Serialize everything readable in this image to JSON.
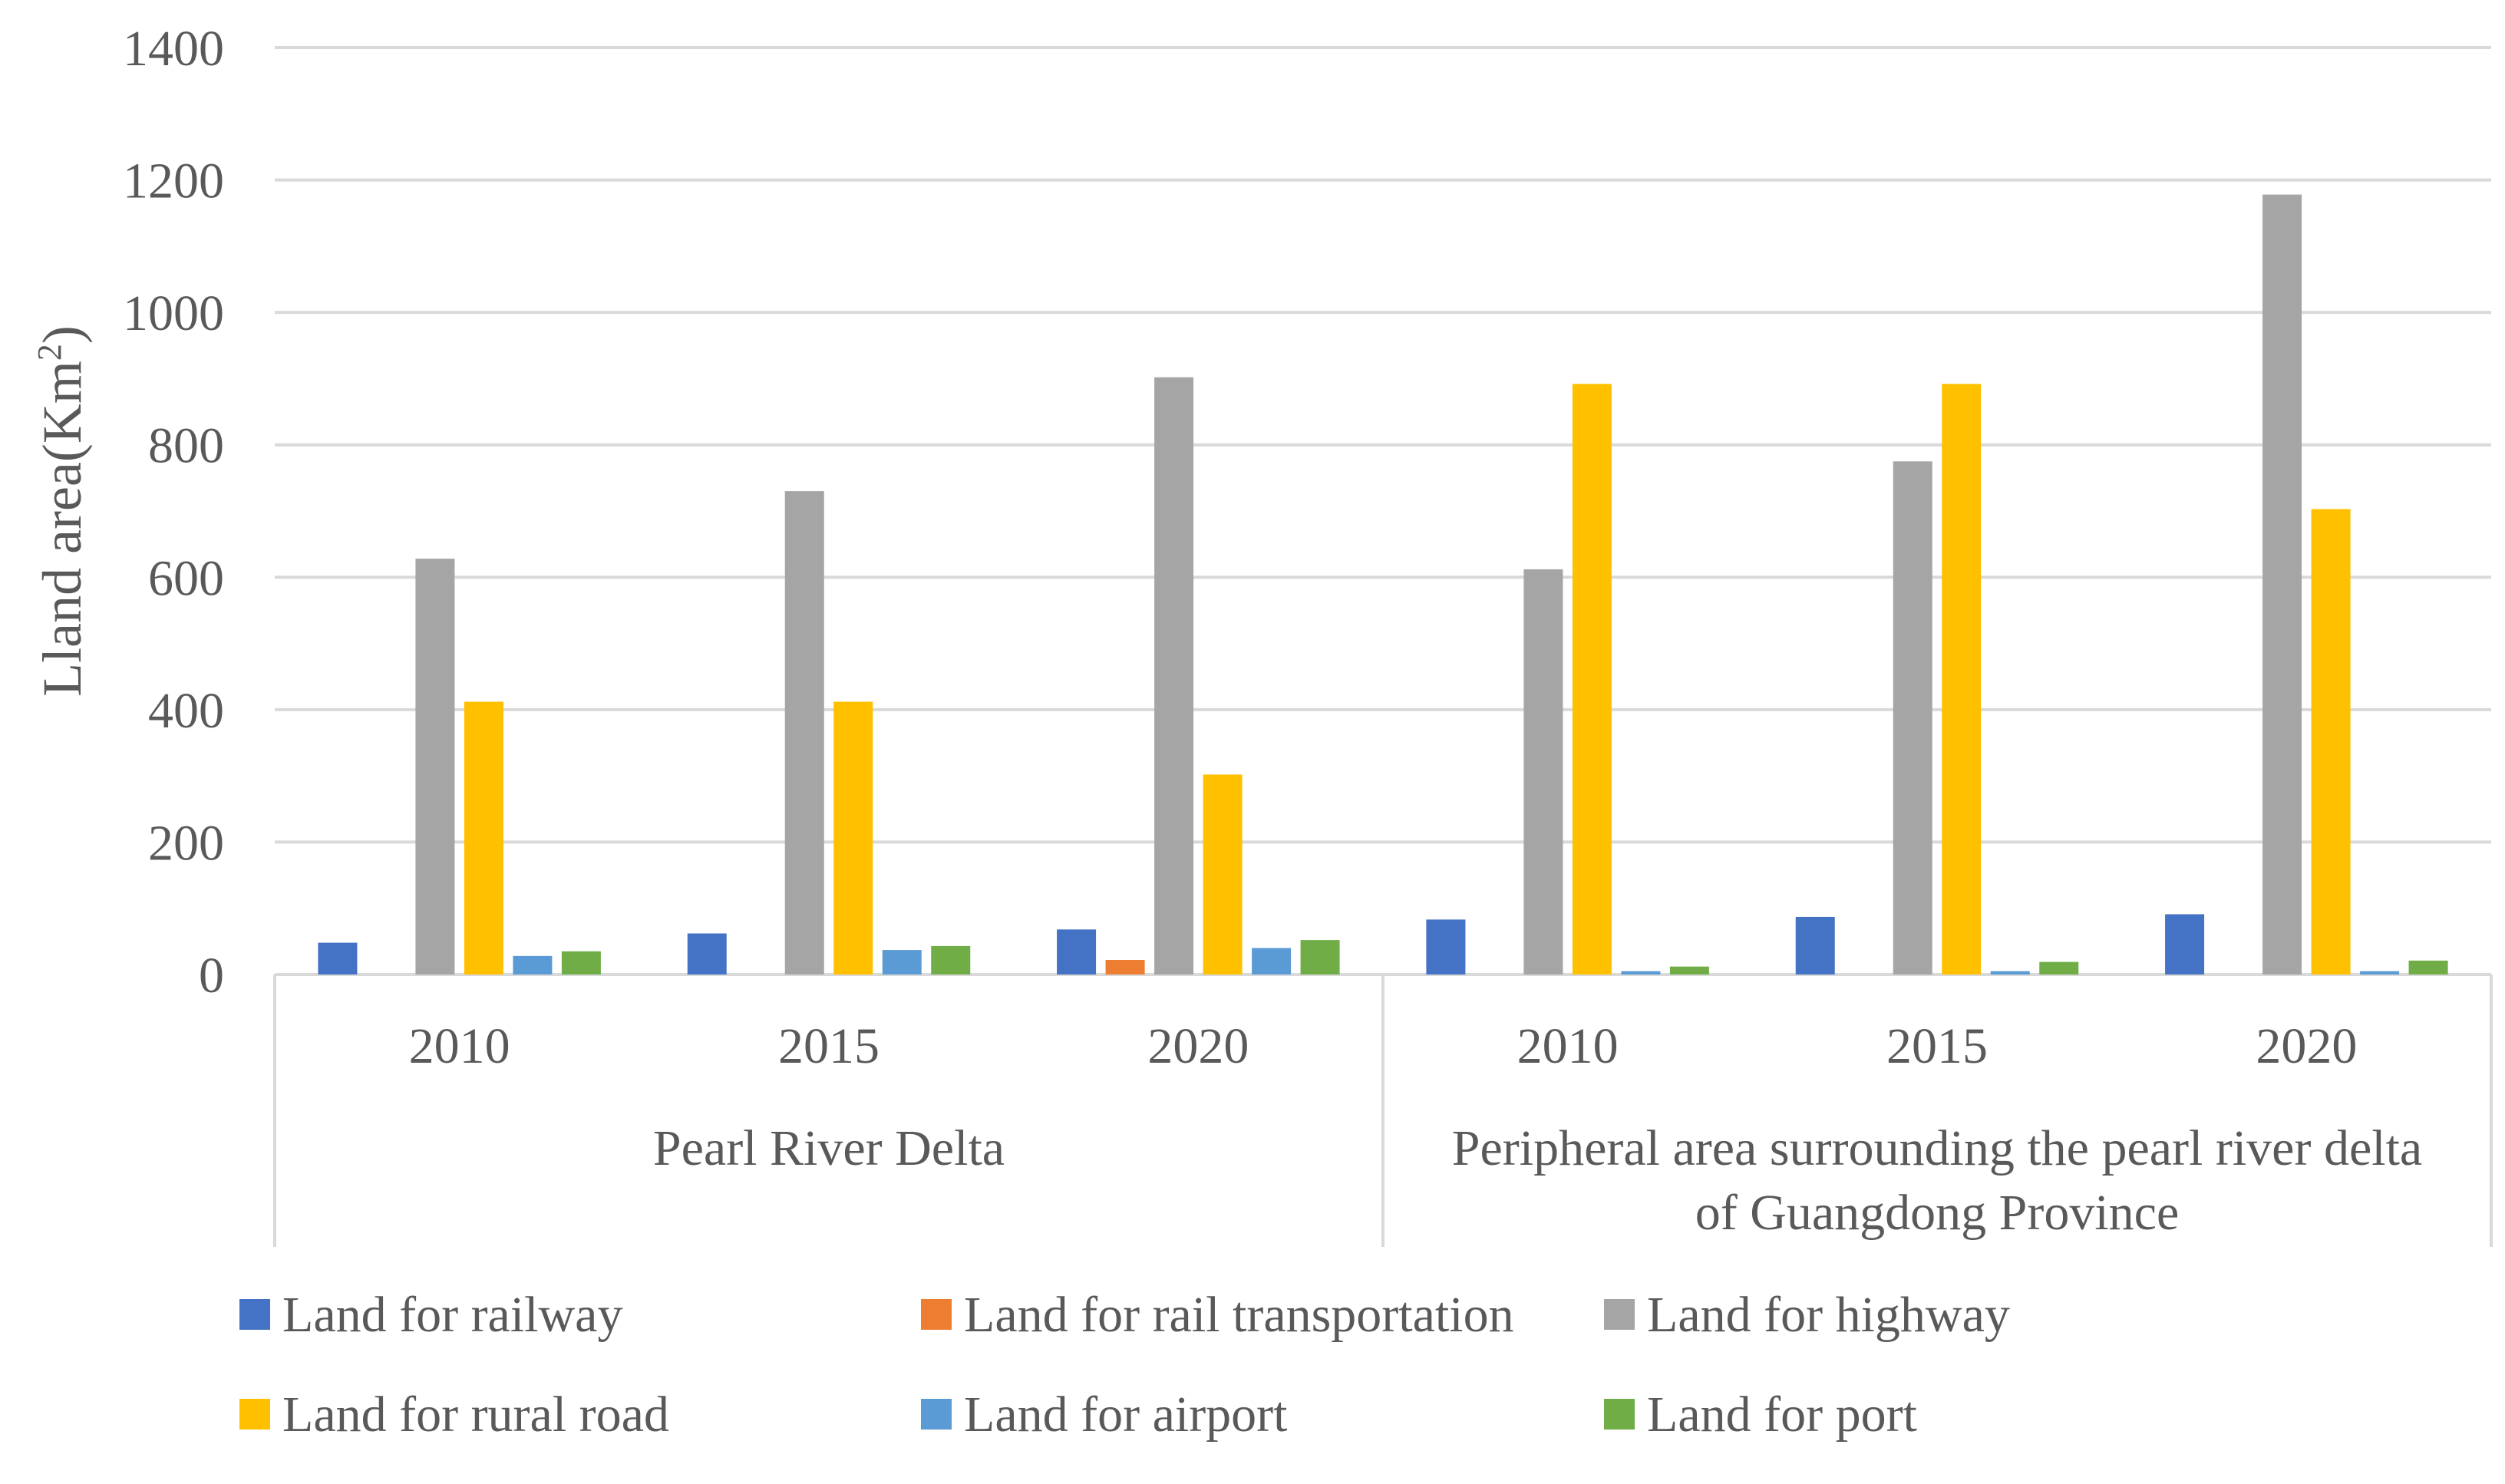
{
  "chart_data": {
    "type": "bar",
    "title": "",
    "ylabel": "Lland area(Km",
    "ylabel_superscript": "2",
    "ylabel_suffix": ")",
    "xlabel": "",
    "ylim": [
      0,
      1400
    ],
    "yticks": [
      0,
      200,
      400,
      600,
      800,
      1000,
      1200,
      1400
    ],
    "grid": true,
    "legend_position": "bottom",
    "groups": [
      {
        "name": "Pearl River Delta",
        "name_lines": [
          "Pearl River Delta"
        ],
        "categories": [
          "2010",
          "2015",
          "2020"
        ]
      },
      {
        "name": "Peripheral area surrounding the pearl river delta of Guangdong Province",
        "name_lines": [
          "Peripheral area surrounding the pearl river delta",
          "of Guangdong Province"
        ],
        "categories": [
          "2010",
          "2015",
          "2020"
        ]
      }
    ],
    "series": [
      {
        "name": "Land for railway",
        "color": "#4472C4",
        "values": [
          48,
          62,
          68,
          83,
          87,
          91
        ]
      },
      {
        "name": "Land for rail transportation",
        "color": "#ED7D31",
        "values": [
          0,
          0,
          22,
          0,
          0,
          0
        ]
      },
      {
        "name": "Land for highway",
        "color": "#A5A5A5",
        "values": [
          628,
          730,
          902,
          612,
          775,
          1178
        ]
      },
      {
        "name": "Land for rural road",
        "color": "#FFC000",
        "values": [
          412,
          412,
          302,
          892,
          892,
          703
        ]
      },
      {
        "name": "Land for airport",
        "color": "#5B9BD5",
        "values": [
          28,
          37,
          40,
          5,
          5,
          5
        ]
      },
      {
        "name": "Land for port",
        "color": "#70AD47",
        "values": [
          35,
          43,
          52,
          12,
          19,
          21
        ]
      }
    ]
  }
}
